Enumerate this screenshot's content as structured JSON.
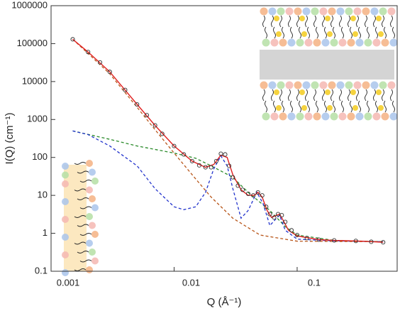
{
  "chart_data": {
    "type": "line",
    "x_label": "Q (Å⁻¹)",
    "y_label": "I(Q) (cm⁻¹)",
    "x_scale": "log",
    "y_scale": "log",
    "xlim": [
      0.001,
      0.65
    ],
    "ylim": [
      0.1,
      1000000
    ],
    "xticks": [
      0.001,
      0.01,
      0.1
    ],
    "yticks": [
      0.1,
      1,
      10,
      100,
      1000,
      10000,
      100000,
      1000000
    ],
    "series": [
      {
        "style": "markers",
        "color": "#333333",
        "x": [
          0.0015,
          0.002,
          0.0025,
          0.003,
          0.004,
          0.005,
          0.006,
          0.007,
          0.008,
          0.01,
          0.012,
          0.014,
          0.016,
          0.018,
          0.02,
          0.022,
          0.024,
          0.026,
          0.028,
          0.03,
          0.033,
          0.036,
          0.04,
          0.044,
          0.048,
          0.052,
          0.056,
          0.06,
          0.065,
          0.07,
          0.075,
          0.08,
          0.09,
          0.1,
          0.12,
          0.15,
          0.2,
          0.3,
          0.4,
          0.5
        ],
        "values": [
          130000,
          60000,
          32000,
          18000,
          6000,
          2500,
          1300,
          700,
          420,
          200,
          120,
          80,
          62,
          55,
          55,
          80,
          125,
          120,
          60,
          30,
          18,
          14,
          11,
          10,
          12,
          10,
          5,
          3.2,
          2.6,
          3.2,
          3,
          2,
          1.2,
          0.9,
          0.75,
          0.68,
          0.65,
          0.63,
          0.6,
          0.58
        ]
      },
      {
        "style": "solid",
        "color": "#e02020",
        "x": [
          0.0015,
          0.002,
          0.003,
          0.005,
          0.007,
          0.01,
          0.014,
          0.018,
          0.021,
          0.024,
          0.027,
          0.03,
          0.035,
          0.04,
          0.045,
          0.048,
          0.052,
          0.057,
          0.062,
          0.068,
          0.072,
          0.077,
          0.085,
          0.1,
          0.15,
          0.2,
          0.3,
          0.5
        ],
        "values": [
          130000,
          60000,
          18000,
          2500,
          700,
          200,
          80,
          55,
          65,
          115,
          100,
          35,
          14,
          10,
          10,
          12,
          9,
          4,
          2.6,
          3,
          3.2,
          2.2,
          1.2,
          0.85,
          0.68,
          0.65,
          0.63,
          0.58
        ]
      },
      {
        "style": "dashed",
        "color": "#2a8a2a",
        "x": [
          0.0015,
          0.003,
          0.005,
          0.01,
          0.015,
          0.02,
          0.03,
          0.04,
          0.06,
          0.08,
          0.1,
          0.2,
          0.5
        ],
        "values": [
          500,
          300,
          200,
          130,
          95,
          60,
          30,
          12,
          4,
          1.5,
          0.9,
          0.65,
          0.6
        ]
      },
      {
        "style": "dashed",
        "color": "#2233cc",
        "x": [
          0.0015,
          0.002,
          0.003,
          0.005,
          0.007,
          0.01,
          0.012,
          0.015,
          0.018,
          0.021,
          0.024,
          0.027,
          0.03,
          0.035,
          0.04,
          0.047,
          0.053,
          0.06,
          0.068,
          0.072,
          0.08,
          0.1,
          0.2,
          0.5
        ],
        "values": [
          500,
          400,
          200,
          60,
          15,
          5,
          4.2,
          5,
          12,
          50,
          110,
          60,
          15,
          2.5,
          4,
          12,
          6,
          1.6,
          2.5,
          3,
          1.2,
          0.7,
          0.63,
          0.6
        ]
      },
      {
        "style": "dashed",
        "color": "#b8561a",
        "x": [
          0.0015,
          0.002,
          0.003,
          0.005,
          0.007,
          0.01,
          0.015,
          0.02,
          0.03,
          0.05,
          0.1,
          0.5
        ],
        "values": [
          130000,
          55000,
          16000,
          2100,
          540,
          130,
          27,
          9,
          2.5,
          0.9,
          0.62,
          0.6
        ]
      }
    ]
  }
}
